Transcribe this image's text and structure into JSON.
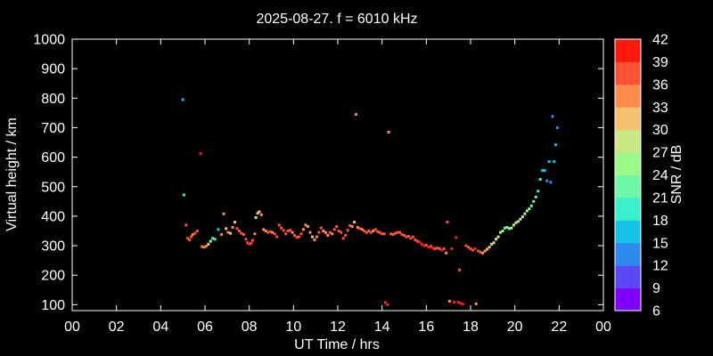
{
  "chart_data": {
    "type": "scatter",
    "title": "2025-08-27. f = 6010 kHz",
    "xlabel": "UT Time / hrs",
    "ylabel": "Virtual height / km",
    "xlim": [
      0,
      24
    ],
    "ylim": [
      80,
      1000
    ],
    "xticks": [
      "00",
      "02",
      "04",
      "06",
      "08",
      "10",
      "12",
      "14",
      "16",
      "18",
      "20",
      "22",
      "00"
    ],
    "yticks": [
      100,
      200,
      300,
      400,
      500,
      600,
      700,
      800,
      900,
      1000
    ],
    "colorbar": {
      "label": "SNR / dB",
      "min": 6,
      "max": 42,
      "ticks": [
        6,
        9,
        12,
        15,
        18,
        21,
        24,
        27,
        30,
        33,
        36,
        39,
        42
      ],
      "colors": [
        "#7f00ff",
        "#5a48f9",
        "#2e8af0",
        "#14c3e6",
        "#3bf0cc",
        "#6cf9a6",
        "#9bf98a",
        "#c9e783",
        "#f4c16d",
        "#ff8c4c",
        "#ff5232",
        "#ff1a10"
      ]
    },
    "points": [
      [
        5.0,
        795,
        15
      ],
      [
        5.05,
        472,
        18
      ],
      [
        5.15,
        370,
        37
      ],
      [
        5.22,
        325,
        37
      ],
      [
        5.3,
        320,
        38
      ],
      [
        5.38,
        330,
        36
      ],
      [
        5.45,
        338,
        35
      ],
      [
        5.55,
        342,
        37
      ],
      [
        5.65,
        350,
        37
      ],
      [
        5.8,
        612,
        40
      ],
      [
        5.85,
        297,
        36
      ],
      [
        5.95,
        295,
        34
      ],
      [
        6.05,
        298,
        33
      ],
      [
        6.15,
        305,
        31
      ],
      [
        6.25,
        315,
        26
      ],
      [
        6.35,
        325,
        22
      ],
      [
        6.45,
        322,
        19
      ],
      [
        6.6,
        355,
        15
      ],
      [
        6.75,
        338,
        33
      ],
      [
        6.85,
        408,
        33
      ],
      [
        6.95,
        358,
        31
      ],
      [
        7.05,
        345,
        33
      ],
      [
        7.15,
        342,
        32
      ],
      [
        7.25,
        362,
        33
      ],
      [
        7.35,
        380,
        31
      ],
      [
        7.45,
        358,
        36
      ],
      [
        7.55,
        350,
        37
      ],
      [
        7.65,
        342,
        36
      ],
      [
        7.75,
        338,
        36
      ],
      [
        7.85,
        322,
        38
      ],
      [
        7.92,
        310,
        38
      ],
      [
        8.0,
        305,
        39
      ],
      [
        8.08,
        308,
        38
      ],
      [
        8.15,
        318,
        37
      ],
      [
        8.25,
        340,
        33
      ],
      [
        8.3,
        395,
        29
      ],
      [
        8.38,
        410,
        30
      ],
      [
        8.45,
        415,
        32
      ],
      [
        8.55,
        405,
        33
      ],
      [
        8.65,
        355,
        34
      ],
      [
        8.75,
        350,
        33
      ],
      [
        8.85,
        345,
        37
      ],
      [
        8.95,
        348,
        36
      ],
      [
        9.05,
        345,
        35
      ],
      [
        9.15,
        340,
        38
      ],
      [
        9.25,
        330,
        37
      ],
      [
        9.35,
        370,
        37
      ],
      [
        9.45,
        360,
        37
      ],
      [
        9.55,
        352,
        38
      ],
      [
        9.65,
        340,
        36
      ],
      [
        9.75,
        350,
        37
      ],
      [
        9.85,
        352,
        38
      ],
      [
        9.95,
        345,
        33
      ],
      [
        10.05,
        335,
        36
      ],
      [
        10.15,
        328,
        38
      ],
      [
        10.25,
        330,
        37
      ],
      [
        10.35,
        340,
        36
      ],
      [
        10.45,
        355,
        34
      ],
      [
        10.55,
        370,
        33
      ],
      [
        10.65,
        365,
        34
      ],
      [
        10.75,
        345,
        35
      ],
      [
        10.85,
        330,
        32
      ],
      [
        10.95,
        320,
        34
      ],
      [
        11.05,
        330,
        35
      ],
      [
        11.15,
        345,
        37
      ],
      [
        11.25,
        360,
        36
      ],
      [
        11.35,
        350,
        33
      ],
      [
        11.45,
        345,
        35
      ],
      [
        11.55,
        335,
        34
      ],
      [
        11.65,
        345,
        36
      ],
      [
        11.75,
        340,
        35
      ],
      [
        11.85,
        355,
        37
      ],
      [
        11.95,
        365,
        36
      ],
      [
        12.05,
        350,
        37
      ],
      [
        12.15,
        345,
        37
      ],
      [
        12.25,
        325,
        38
      ],
      [
        12.35,
        335,
        37
      ],
      [
        12.45,
        352,
        36
      ],
      [
        12.55,
        368,
        37
      ],
      [
        12.65,
        365,
        35
      ],
      [
        12.75,
        380,
        31
      ],
      [
        12.82,
        745,
        33
      ],
      [
        12.9,
        362,
        35
      ],
      [
        13.0,
        358,
        36
      ],
      [
        13.1,
        355,
        35
      ],
      [
        13.2,
        350,
        37
      ],
      [
        13.3,
        345,
        36
      ],
      [
        13.4,
        350,
        37
      ],
      [
        13.5,
        345,
        38
      ],
      [
        13.6,
        350,
        35
      ],
      [
        13.7,
        355,
        37
      ],
      [
        13.8,
        348,
        38
      ],
      [
        13.9,
        345,
        38
      ],
      [
        14.0,
        340,
        38
      ],
      [
        14.1,
        340,
        37
      ],
      [
        14.15,
        108,
        39
      ],
      [
        14.25,
        100,
        39
      ],
      [
        14.3,
        685,
        35
      ],
      [
        14.4,
        340,
        37
      ],
      [
        14.5,
        338,
        37
      ],
      [
        14.6,
        342,
        37
      ],
      [
        14.7,
        345,
        36
      ],
      [
        14.8,
        345,
        37
      ],
      [
        14.9,
        338,
        37
      ],
      [
        15.0,
        335,
        38
      ],
      [
        15.1,
        330,
        37
      ],
      [
        15.2,
        332,
        37
      ],
      [
        15.3,
        325,
        37
      ],
      [
        15.4,
        330,
        38
      ],
      [
        15.5,
        320,
        38
      ],
      [
        15.6,
        315,
        38
      ],
      [
        15.7,
        312,
        39
      ],
      [
        15.8,
        305,
        39
      ],
      [
        15.9,
        300,
        39
      ],
      [
        16.0,
        302,
        38
      ],
      [
        16.1,
        295,
        39
      ],
      [
        16.2,
        298,
        38
      ],
      [
        16.3,
        292,
        39
      ],
      [
        16.4,
        290,
        38
      ],
      [
        16.5,
        292,
        38
      ],
      [
        16.6,
        290,
        37
      ],
      [
        16.7,
        285,
        39
      ],
      [
        16.8,
        290,
        38
      ],
      [
        16.9,
        275,
        34
      ],
      [
        16.95,
        380,
        37
      ],
      [
        17.05,
        112,
        33
      ],
      [
        17.15,
        290,
        39
      ],
      [
        17.25,
        108,
        39
      ],
      [
        17.35,
        328,
        39
      ],
      [
        17.45,
        108,
        40
      ],
      [
        17.5,
        218,
        38
      ],
      [
        17.55,
        105,
        39
      ],
      [
        17.65,
        102,
        40
      ],
      [
        17.8,
        300,
        38
      ],
      [
        17.9,
        295,
        38
      ],
      [
        18.0,
        290,
        38
      ],
      [
        18.1,
        285,
        38
      ],
      [
        18.2,
        290,
        39
      ],
      [
        18.25,
        103,
        33
      ],
      [
        18.35,
        282,
        37
      ],
      [
        18.45,
        278,
        37
      ],
      [
        18.55,
        275,
        35
      ],
      [
        18.65,
        282,
        33
      ],
      [
        18.75,
        288,
        30
      ],
      [
        18.85,
        295,
        30
      ],
      [
        18.95,
        305,
        29
      ],
      [
        19.05,
        310,
        29
      ],
      [
        19.15,
        322,
        27
      ],
      [
        19.25,
        330,
        27
      ],
      [
        19.35,
        345,
        25
      ],
      [
        19.45,
        350,
        24
      ],
      [
        19.55,
        360,
        22
      ],
      [
        19.65,
        362,
        22
      ],
      [
        19.75,
        358,
        25
      ],
      [
        19.85,
        360,
        26
      ],
      [
        19.95,
        370,
        28
      ],
      [
        20.05,
        378,
        28
      ],
      [
        20.15,
        382,
        27
      ],
      [
        20.25,
        390,
        27
      ],
      [
        20.35,
        398,
        28
      ],
      [
        20.45,
        408,
        27
      ],
      [
        20.55,
        418,
        26
      ],
      [
        20.65,
        425,
        24
      ],
      [
        20.75,
        435,
        22
      ],
      [
        20.85,
        450,
        21
      ],
      [
        20.95,
        465,
        21
      ],
      [
        21.05,
        485,
        20
      ],
      [
        21.15,
        525,
        19
      ],
      [
        21.25,
        555,
        17
      ],
      [
        21.35,
        555,
        16
      ],
      [
        21.45,
        520,
        13
      ],
      [
        21.55,
        585,
        16
      ],
      [
        21.62,
        515,
        12
      ],
      [
        21.7,
        738,
        13
      ],
      [
        21.78,
        585,
        16
      ],
      [
        21.85,
        642,
        15
      ],
      [
        21.92,
        700,
        12
      ]
    ]
  }
}
